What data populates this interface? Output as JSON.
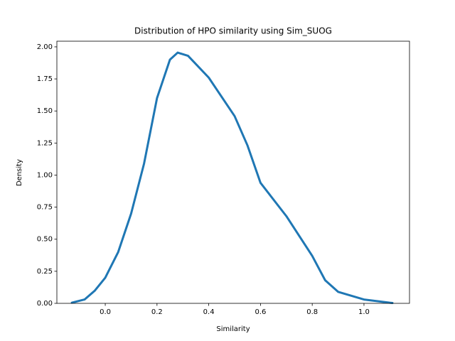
{
  "chart_data": {
    "type": "line",
    "title": "Distribution of HPO similarity using Sim_SUOG",
    "x_label": "Similarity",
    "y_label": "Density",
    "x": [
      -0.129,
      -0.08,
      -0.04,
      0.0,
      0.05,
      0.1,
      0.15,
      0.2,
      0.25,
      0.28,
      0.32,
      0.4,
      0.5,
      0.55,
      0.6,
      0.7,
      0.8,
      0.85,
      0.9,
      1.0,
      1.1,
      1.11
    ],
    "series": [
      {
        "name": "Density",
        "color": "#1f77b4",
        "values": [
          0.005,
          0.03,
          0.1,
          0.2,
          0.4,
          0.7,
          1.09,
          1.6,
          1.9,
          1.955,
          1.93,
          1.76,
          1.46,
          1.23,
          0.94,
          0.68,
          0.37,
          0.18,
          0.09,
          0.03,
          0.005,
          0.003
        ]
      }
    ],
    "xlim": [
      -0.187,
      1.176
    ],
    "ylim": [
      0,
      2.044
    ],
    "xticks": [
      {
        "value": 0,
        "label": "0.0"
      },
      {
        "value": 0.2,
        "label": "0.2"
      },
      {
        "value": 0.4,
        "label": "0.4"
      },
      {
        "value": 0.6,
        "label": "0.6"
      },
      {
        "value": 0.8,
        "label": "0.8"
      },
      {
        "value": 1,
        "label": "1.0"
      }
    ],
    "yticks": [
      {
        "value": 0,
        "label": "0.00"
      },
      {
        "value": 0.25,
        "label": "0.25"
      },
      {
        "value": 0.5,
        "label": "0.50"
      },
      {
        "value": 0.75,
        "label": "0.75"
      },
      {
        "value": 1,
        "label": "1.00"
      },
      {
        "value": 1.25,
        "label": "1.25"
      },
      {
        "value": 1.5,
        "label": "1.50"
      },
      {
        "value": 1.75,
        "label": "1.75"
      },
      {
        "value": 2,
        "label": "2.00"
      }
    ],
    "grid": false
  }
}
